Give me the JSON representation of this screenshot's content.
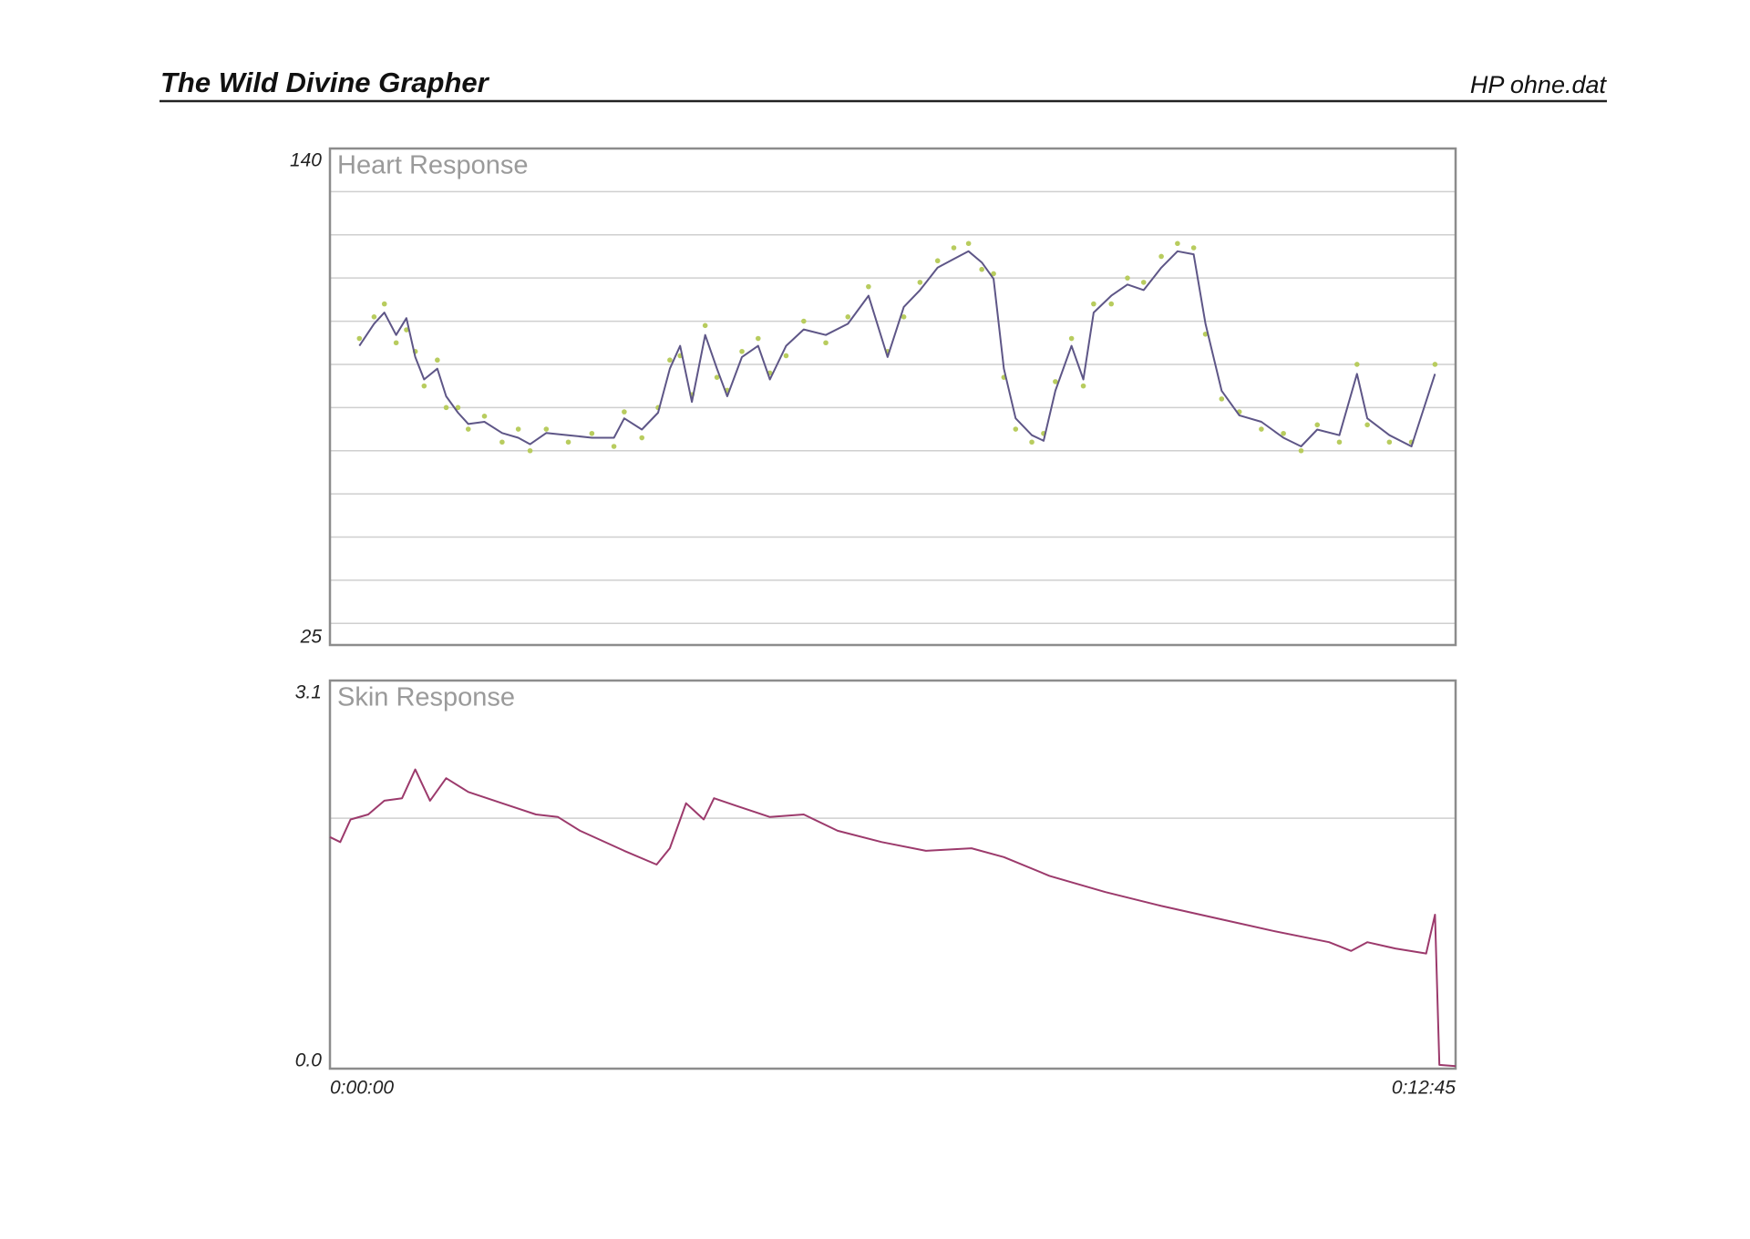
{
  "header": {
    "title": "The Wild Divine Grapher",
    "file": "HP ohne.dat"
  },
  "chart_data": [
    {
      "type": "line",
      "title": "Heart Response",
      "xlim": [
        0,
        765
      ],
      "ylim": [
        25,
        140
      ],
      "yticks": [
        25,
        140
      ],
      "ygrid": [
        30,
        40,
        50,
        60,
        70,
        80,
        90,
        100,
        110,
        120,
        130
      ],
      "series": [
        {
          "mode": "markers",
          "color": "#b8cc5e",
          "x": [
            20,
            30,
            37,
            45,
            52,
            58,
            64,
            73,
            79,
            87,
            94,
            105,
            117,
            128,
            136,
            147,
            162,
            178,
            193,
            200,
            212,
            223,
            231,
            238,
            246,
            255,
            263,
            270,
            280,
            291,
            299,
            310,
            322,
            337,
            352,
            366,
            379,
            390,
            401,
            413,
            424,
            434,
            443,
            451,
            458,
            466,
            477,
            485,
            493,
            504,
            512,
            519,
            531,
            542,
            553,
            565,
            576,
            587,
            595,
            606,
            618,
            633,
            648,
            660,
            671,
            686,
            698,
            705,
            720,
            735,
            751
          ],
          "values": [
            96,
            101,
            104,
            95,
            98,
            93,
            85,
            91,
            80,
            80,
            75,
            78,
            72,
            75,
            70,
            75,
            72,
            74,
            71,
            79,
            73,
            80,
            91,
            92,
            83,
            99,
            87,
            84,
            93,
            96,
            88,
            92,
            100,
            95,
            101,
            108,
            93,
            101,
            109,
            114,
            117,
            118,
            112,
            111,
            87,
            75,
            72,
            74,
            86,
            96,
            85,
            104,
            104,
            110,
            109,
            115,
            118,
            117,
            97,
            82,
            79,
            75,
            74,
            70,
            76,
            72,
            90,
            76,
            72,
            72,
            90
          ]
        },
        {
          "mode": "line",
          "color": "#5e5687",
          "x": [
            20,
            30,
            37,
            45,
            52,
            58,
            64,
            73,
            79,
            87,
            94,
            105,
            117,
            128,
            136,
            147,
            162,
            178,
            193,
            200,
            212,
            223,
            231,
            238,
            246,
            255,
            263,
            270,
            280,
            291,
            299,
            310,
            322,
            337,
            352,
            366,
            379,
            390,
            401,
            413,
            424,
            434,
            443,
            451,
            458,
            466,
            477,
            485,
            493,
            504,
            512,
            519,
            531,
            542,
            553,
            565,
            576,
            587,
            595,
            606,
            618,
            633,
            648,
            660,
            671,
            686,
            698,
            705,
            720,
            735,
            751
          ],
          "values": [
            94.3,
            99.4,
            102,
            96.8,
            100.7,
            91.7,
            86.5,
            89,
            82.6,
            78.8,
            76.2,
            76.7,
            74.1,
            73,
            71.5,
            74.1,
            73.6,
            73,
            73,
            77.5,
            74.9,
            78.8,
            89,
            94.3,
            81.3,
            96.8,
            89,
            82.6,
            91.7,
            94.3,
            86.5,
            94.3,
            98.1,
            96.8,
            99.4,
            105.9,
            91.7,
            103.3,
            107.2,
            112.4,
            114.4,
            116.2,
            113.6,
            109.8,
            89,
            77.5,
            73.6,
            72.3,
            83.9,
            94.3,
            86.5,
            102,
            105.9,
            108.5,
            107.2,
            112.4,
            116.2,
            115.5,
            99.4,
            83.9,
            78.2,
            76.7,
            73,
            71,
            74.9,
            73.6,
            87.8,
            77.5,
            73.6,
            71,
            87.8
          ]
        }
      ]
    },
    {
      "type": "line",
      "title": "Skin Response",
      "xlim": [
        0,
        765
      ],
      "xticks": [
        {
          "value": 0,
          "label": "0:00:00"
        },
        {
          "value": 765,
          "label": "0:12:45"
        }
      ],
      "ylim": [
        0,
        3.1
      ],
      "yticks": [
        {
          "value": 0,
          "label": "0.0"
        },
        3.1
      ],
      "ygrid": [
        2
      ],
      "series": [
        {
          "mode": "line",
          "color": "#9c3a6c",
          "x": [
            0,
            7,
            14,
            26,
            37,
            49,
            58,
            68,
            79,
            94,
            117,
            140,
            155,
            170,
            200,
            222,
            231,
            242,
            254,
            261,
            276,
            299,
            322,
            345,
            375,
            405,
            436,
            458,
            489,
            527,
            565,
            603,
            641,
            679,
            694,
            705,
            724,
            745,
            751,
            754,
            765
          ],
          "values": [
            1.85,
            1.81,
            1.99,
            2.03,
            2.14,
            2.16,
            2.39,
            2.14,
            2.32,
            2.21,
            2.12,
            2.03,
            2.01,
            1.9,
            1.74,
            1.63,
            1.76,
            2.12,
            1.99,
            2.16,
            2.1,
            2.01,
            2.03,
            1.9,
            1.81,
            1.74,
            1.76,
            1.69,
            1.54,
            1.41,
            1.3,
            1.2,
            1.1,
            1.01,
            0.94,
            1.01,
            0.96,
            0.92,
            1.23,
            0.03,
            0.02
          ]
        }
      ]
    }
  ]
}
